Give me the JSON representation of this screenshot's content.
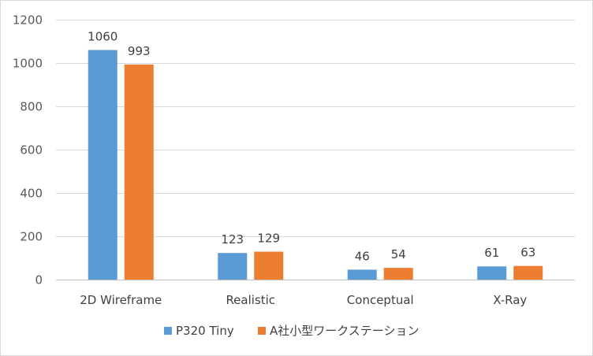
{
  "chart_data": {
    "type": "bar",
    "categories": [
      "2D Wireframe",
      "Realistic",
      "Conceptual",
      "X-Ray"
    ],
    "series": [
      {
        "name": "P320 Tiny",
        "values": [
          1060,
          123,
          46,
          61
        ],
        "color": "#5b9bd5"
      },
      {
        "name": "A社小型ワークステーション",
        "values": [
          993,
          129,
          54,
          63
        ],
        "color": "#ed7d31"
      }
    ],
    "ylim": [
      0,
      1200
    ],
    "yticks": [
      0,
      200,
      400,
      600,
      800,
      1000,
      1200
    ],
    "title": "",
    "xlabel": "",
    "ylabel": "",
    "grid": true,
    "legend": "bottom",
    "gridColor": "#d9d9d9",
    "axisColor": "#bfbfbf"
  }
}
